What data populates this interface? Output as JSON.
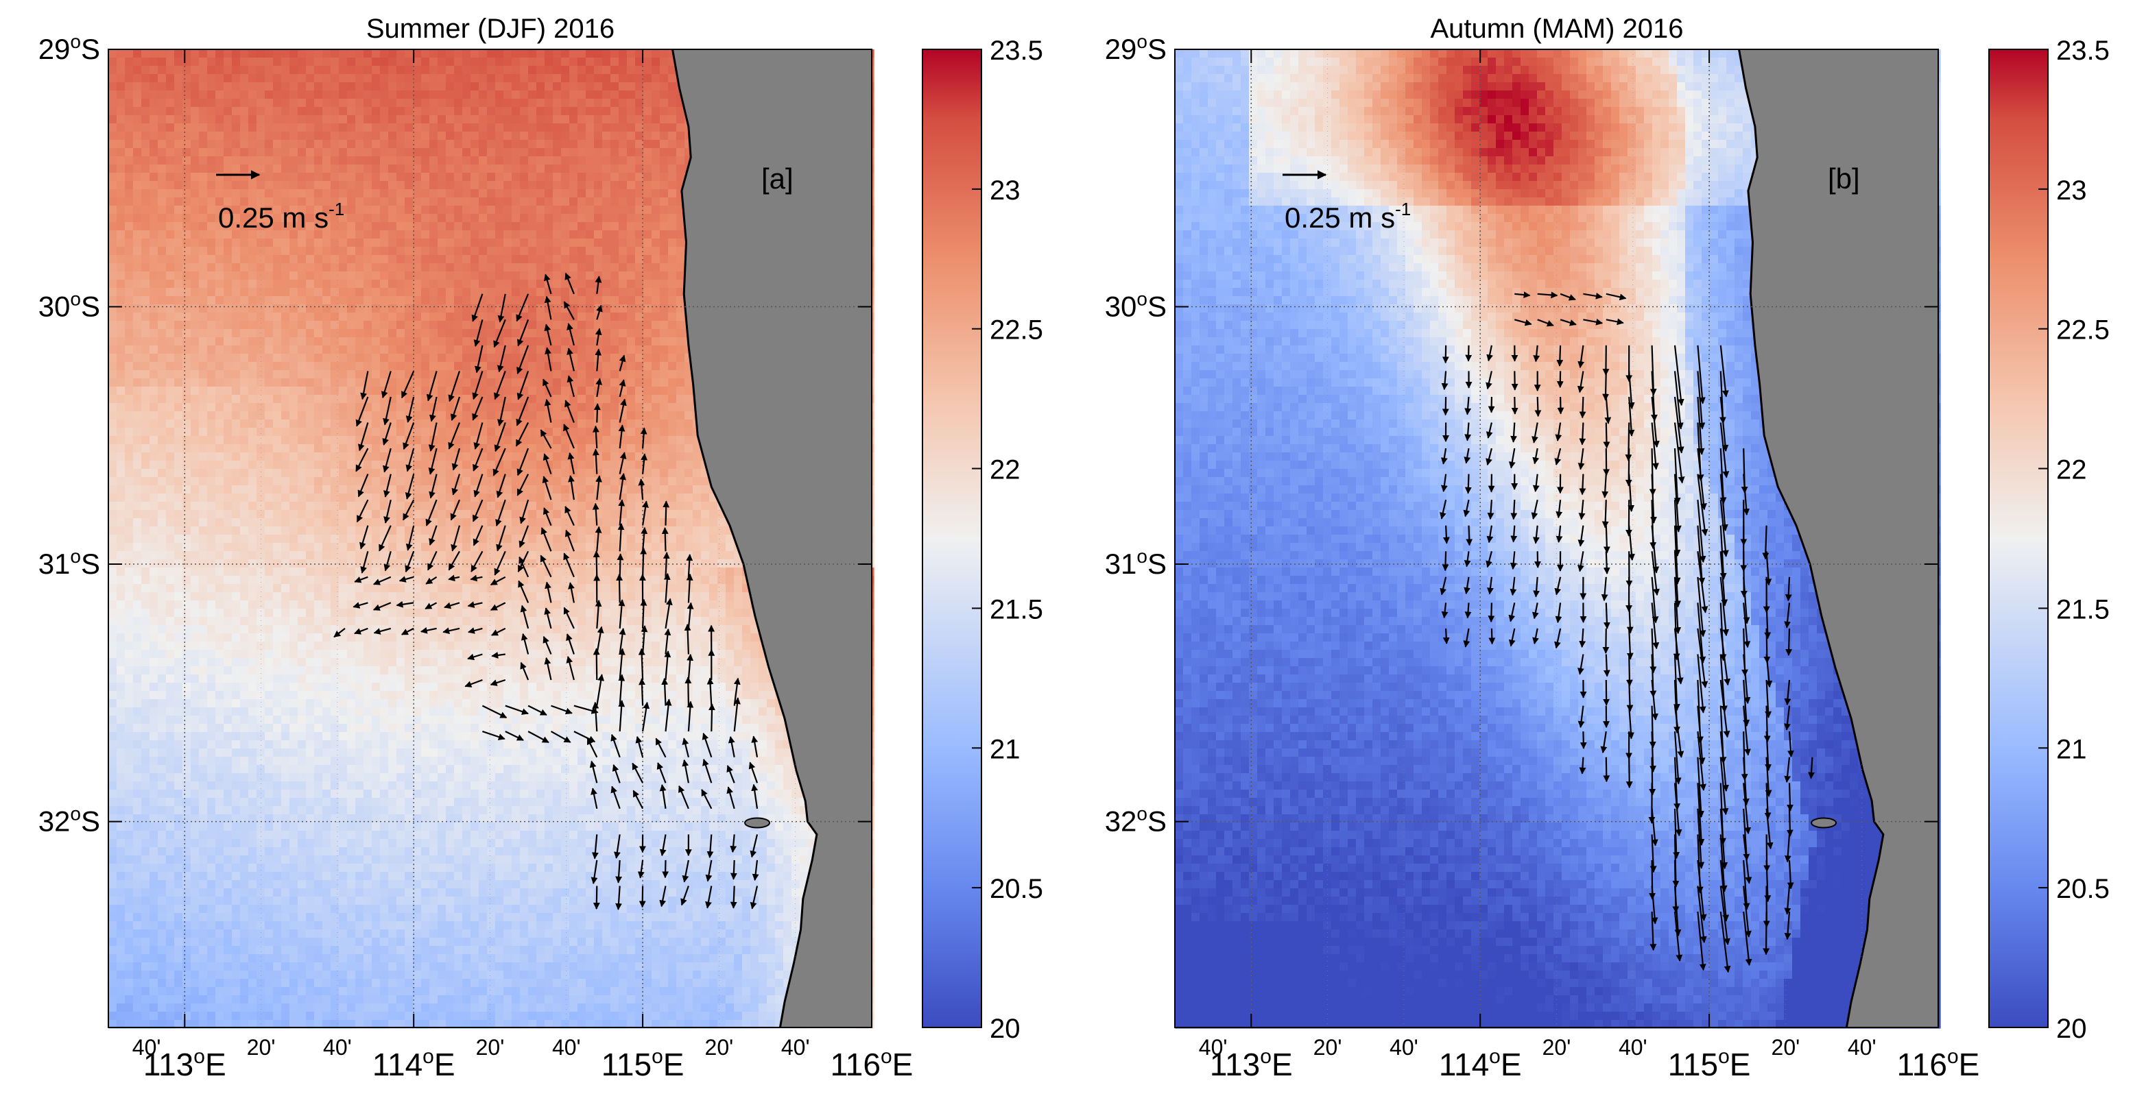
{
  "panels": [
    {
      "title": "Summer (DJF) 2016",
      "panel_label": "[a]",
      "reference_arrow_label": "0.25 m s",
      "reference_arrow_unit_exponent": "-1",
      "pattern": "summer"
    },
    {
      "title": "Autumn (MAM) 2016",
      "panel_label": "[b]",
      "reference_arrow_label": "0.25 m s",
      "reference_arrow_unit_exponent": "-1",
      "pattern": "autumn"
    }
  ],
  "lat_ticks": [
    "29",
    "30",
    "31",
    "32"
  ],
  "lat_suffix": "S",
  "lon_major_ticks": [
    "113",
    "114",
    "115",
    "116"
  ],
  "lon_minor_label": [
    "40'",
    "20'"
  ],
  "lon_suffix": "E",
  "degree_symbol": "o",
  "colorbar": {
    "min": 20,
    "max": 23.5,
    "ticks": [
      "20",
      "20.5",
      "21",
      "21.5",
      "22",
      "22.5",
      "23",
      "23.5"
    ],
    "colormap": [
      "#3b4cc0",
      "#6788ee",
      "#9abbff",
      "#c9d7f0",
      "#edd1c2",
      "#f7a889",
      "#e26952",
      "#b40426"
    ]
  },
  "land_color": "#808080",
  "arrow_color": "#000000"
}
